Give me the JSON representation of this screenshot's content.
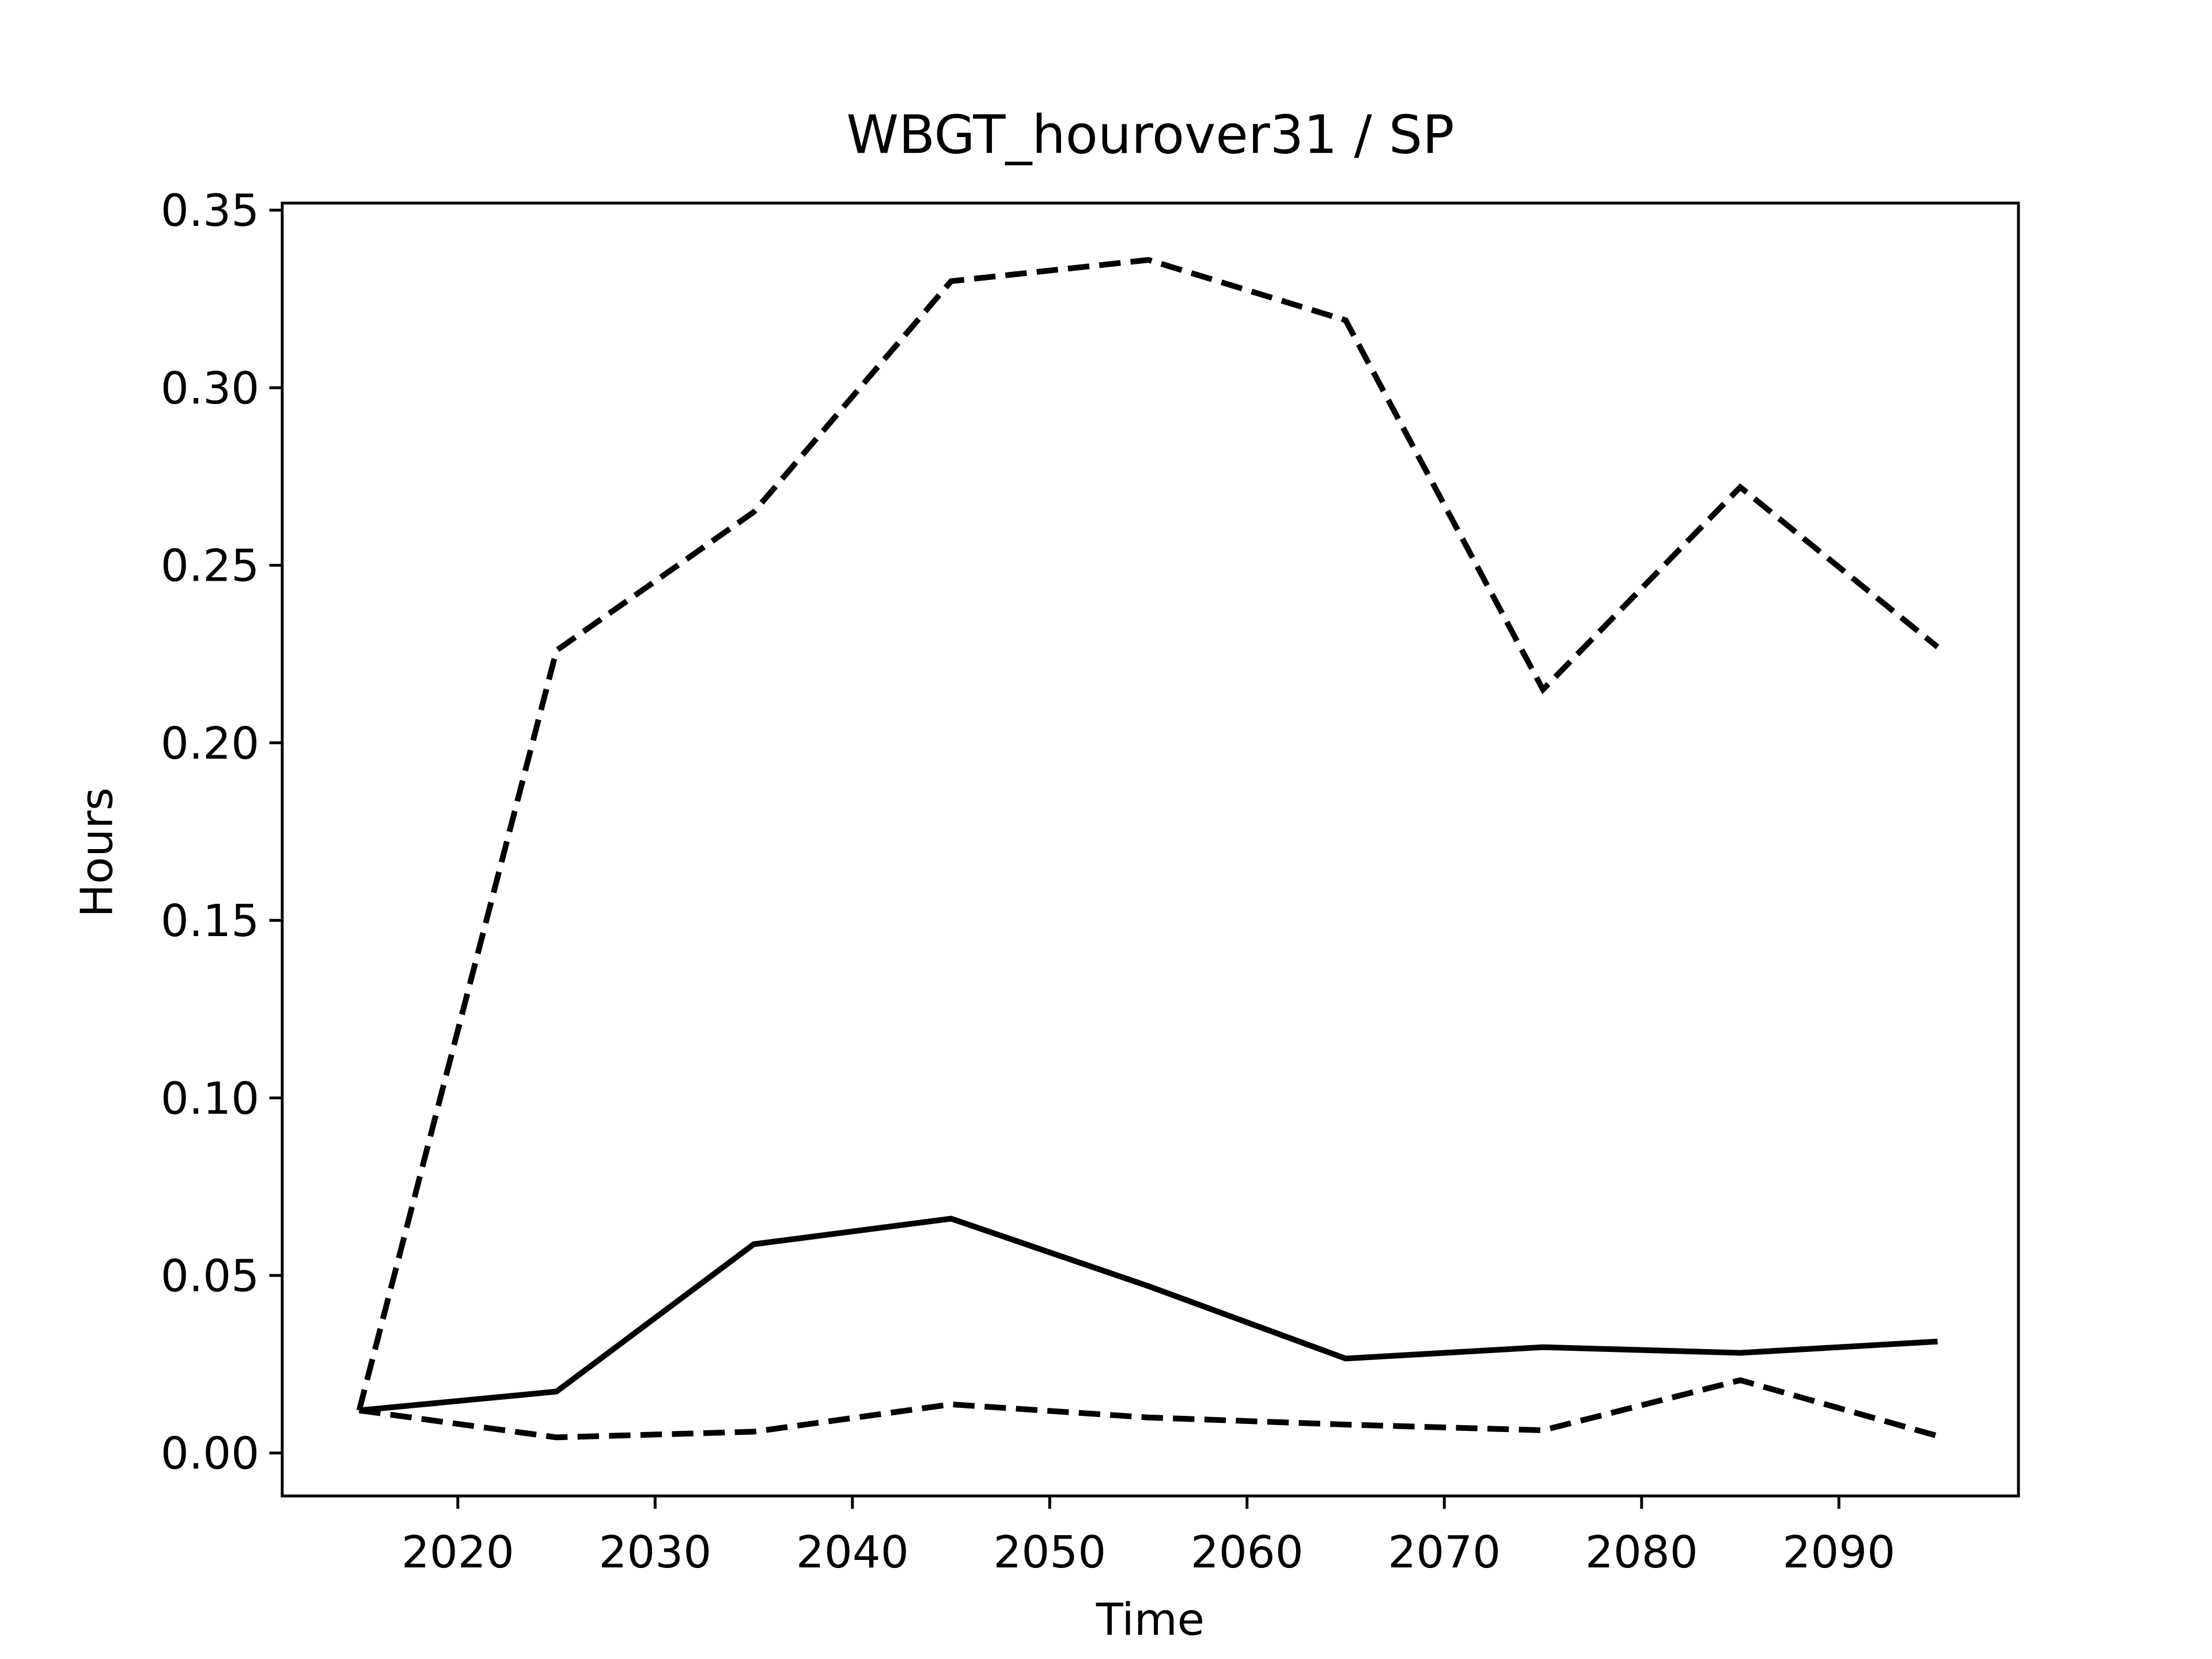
{
  "chart_data": {
    "type": "line",
    "title": "WBGT_hourover31 / SP",
    "xlabel": "Time",
    "ylabel": "Hours",
    "x": [
      2015,
      2025,
      2035,
      2045,
      2055,
      2065,
      2075,
      2085,
      2095
    ],
    "series": [
      {
        "color": "#000000",
        "linestyle": "solid",
        "values": [
          0.012,
          0.0173,
          0.0588,
          0.066,
          0.047,
          0.0266,
          0.0298,
          0.0282,
          0.0314
        ]
      },
      {
        "color": "#000000",
        "linestyle": "dashed",
        "values": [
          0.012,
          0.226,
          0.265,
          0.33,
          0.336,
          0.319,
          0.215,
          0.272,
          0.227
        ]
      },
      {
        "color": "#000000",
        "linestyle": "dashed",
        "values": [
          0.012,
          0.0044,
          0.006,
          0.0137,
          0.01,
          0.008,
          0.0064,
          0.0205,
          0.0048
        ]
      }
    ],
    "xlim": [
      2011.1,
      2099.1
    ],
    "ylim": [
      -0.0121,
      0.352
    ],
    "xticks": [
      2020,
      2030,
      2040,
      2050,
      2060,
      2070,
      2080,
      2090
    ],
    "yticks": [
      {
        "value": 0,
        "label": "0.00"
      },
      {
        "value": 0.05,
        "label": "0.05"
      },
      {
        "value": 0.1,
        "label": "0.10"
      },
      {
        "value": 0.15,
        "label": "0.15"
      },
      {
        "value": 0.2,
        "label": "0.20"
      },
      {
        "value": 0.25,
        "label": "0.25"
      },
      {
        "value": 0.3,
        "label": "0.30"
      },
      {
        "value": 0.35,
        "label": "0.35"
      }
    ],
    "grid": false
  }
}
